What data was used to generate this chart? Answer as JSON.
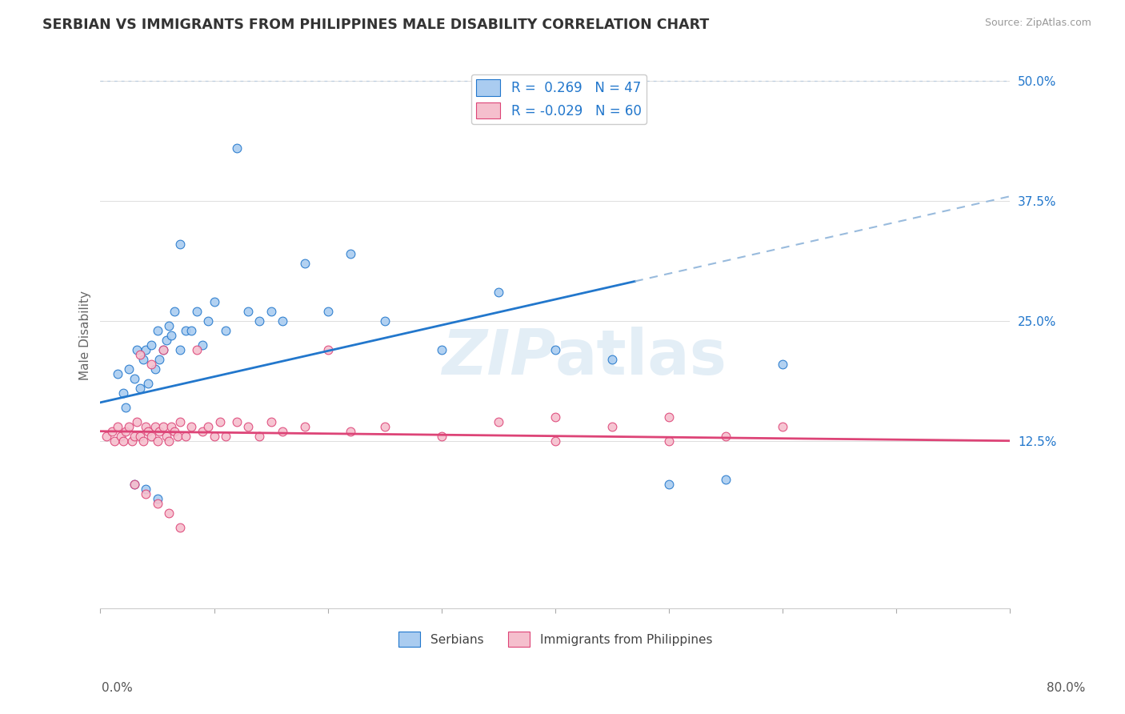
{
  "title": "SERBIAN VS IMMIGRANTS FROM PHILIPPINES MALE DISABILITY CORRELATION CHART",
  "source": "Source: ZipAtlas.com",
  "ylabel": "Male Disability",
  "xlim": [
    0.0,
    80.0
  ],
  "ylim": [
    -5.0,
    52.0
  ],
  "yticks": [
    12.5,
    25.0,
    37.5,
    50.0
  ],
  "ytick_labels": [
    "12.5%",
    "25.0%",
    "37.5%",
    "50.0%"
  ],
  "serbian_color": "#aaccf0",
  "philippine_color": "#f5bfcd",
  "trend_serbian_color": "#2277cc",
  "trend_philippine_color": "#dd4477",
  "dashed_top_color": "#99bbdd",
  "legend_serbian_label": "R =  0.269   N = 47",
  "legend_philippine_label": "R = -0.029   N = 60",
  "serb_trend_x0": 0.0,
  "serb_trend_y0": 16.5,
  "serb_trend_x1": 80.0,
  "serb_trend_y1": 38.0,
  "serb_solid_xmax": 47.0,
  "phil_trend_x0": 0.0,
  "phil_trend_y0": 13.5,
  "phil_trend_x1": 80.0,
  "phil_trend_y1": 12.5,
  "serb_x": [
    1.5,
    2.0,
    2.2,
    2.5,
    3.0,
    3.2,
    3.5,
    3.8,
    4.0,
    4.2,
    4.5,
    4.8,
    5.0,
    5.2,
    5.5,
    5.8,
    6.0,
    6.2,
    6.5,
    7.0,
    7.5,
    8.0,
    8.5,
    9.0,
    9.5,
    10.0,
    11.0,
    12.0,
    13.0,
    14.0,
    15.0,
    16.0,
    18.0,
    20.0,
    22.0,
    25.0,
    30.0,
    35.0,
    40.0,
    45.0,
    50.0,
    55.0,
    60.0,
    7.0,
    3.0,
    4.0,
    5.0
  ],
  "serb_y": [
    19.5,
    17.5,
    16.0,
    20.0,
    19.0,
    22.0,
    18.0,
    21.0,
    22.0,
    18.5,
    22.5,
    20.0,
    24.0,
    21.0,
    22.0,
    23.0,
    24.5,
    23.5,
    26.0,
    22.0,
    24.0,
    24.0,
    26.0,
    22.5,
    25.0,
    27.0,
    24.0,
    43.0,
    26.0,
    25.0,
    26.0,
    25.0,
    31.0,
    26.0,
    32.0,
    25.0,
    22.0,
    28.0,
    22.0,
    21.0,
    8.0,
    8.5,
    20.5,
    33.0,
    8.0,
    7.5,
    6.5
  ],
  "phil_x": [
    0.5,
    1.0,
    1.2,
    1.5,
    1.8,
    2.0,
    2.2,
    2.5,
    2.8,
    3.0,
    3.2,
    3.5,
    3.8,
    4.0,
    4.2,
    4.5,
    4.8,
    5.0,
    5.2,
    5.5,
    5.8,
    6.0,
    6.2,
    6.5,
    6.8,
    7.0,
    7.5,
    8.0,
    8.5,
    9.0,
    9.5,
    10.0,
    10.5,
    11.0,
    12.0,
    13.0,
    14.0,
    15.0,
    16.0,
    18.0,
    20.0,
    22.0,
    25.0,
    30.0,
    35.0,
    40.0,
    45.0,
    50.0,
    55.0,
    60.0,
    3.0,
    4.0,
    5.0,
    6.0,
    7.0,
    3.5,
    4.5,
    5.5,
    40.0,
    50.0
  ],
  "phil_y": [
    13.0,
    13.5,
    12.5,
    14.0,
    13.0,
    12.5,
    13.5,
    14.0,
    12.5,
    13.0,
    14.5,
    13.0,
    12.5,
    14.0,
    13.5,
    13.0,
    14.0,
    12.5,
    13.5,
    14.0,
    13.0,
    12.5,
    14.0,
    13.5,
    13.0,
    14.5,
    13.0,
    14.0,
    22.0,
    13.5,
    14.0,
    13.0,
    14.5,
    13.0,
    14.5,
    14.0,
    13.0,
    14.5,
    13.5,
    14.0,
    22.0,
    13.5,
    14.0,
    13.0,
    14.5,
    15.0,
    14.0,
    15.0,
    13.0,
    14.0,
    8.0,
    7.0,
    6.0,
    5.0,
    3.5,
    21.5,
    20.5,
    22.0,
    12.5,
    12.5
  ]
}
